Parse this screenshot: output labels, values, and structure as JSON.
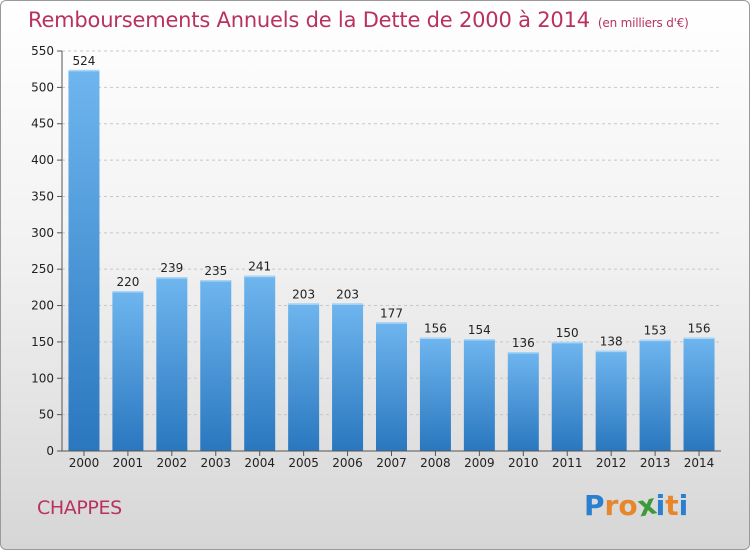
{
  "header": {
    "title": "Remboursements Annuels de la Dette de 2000 à 2014",
    "unit": "(en milliers d'€)"
  },
  "footer": {
    "commune": "CHAPPES",
    "logo_letters": [
      "P",
      "r",
      "o",
      "x",
      "i",
      "t",
      "i"
    ],
    "logo_colors": [
      "#2a7fcf",
      "#e8862a",
      "#e8862a",
      "#3c9a3a",
      "#2a7fcf",
      "#e8862a",
      "#2a7fcf"
    ]
  },
  "colors": {
    "title": "#b8325d",
    "bar_light": "#6fb6ef",
    "bar_dark": "#2a77bf"
  },
  "chart_data": {
    "type": "bar",
    "title": "Remboursements Annuels de la Dette de 2000 à 2014",
    "unit": "(en milliers d'€)",
    "categories": [
      "2000",
      "2001",
      "2002",
      "2003",
      "2004",
      "2005",
      "2006",
      "2007",
      "2008",
      "2009",
      "2010",
      "2011",
      "2012",
      "2013",
      "2014"
    ],
    "values": [
      524,
      220,
      239,
      235,
      241,
      203,
      203,
      177,
      156,
      154,
      136,
      150,
      138,
      153,
      156
    ],
    "yticks": [
      0,
      50,
      100,
      150,
      200,
      250,
      300,
      350,
      400,
      450,
      500,
      550
    ],
    "ylim": [
      0,
      550
    ],
    "grid": true,
    "legend": "none"
  }
}
